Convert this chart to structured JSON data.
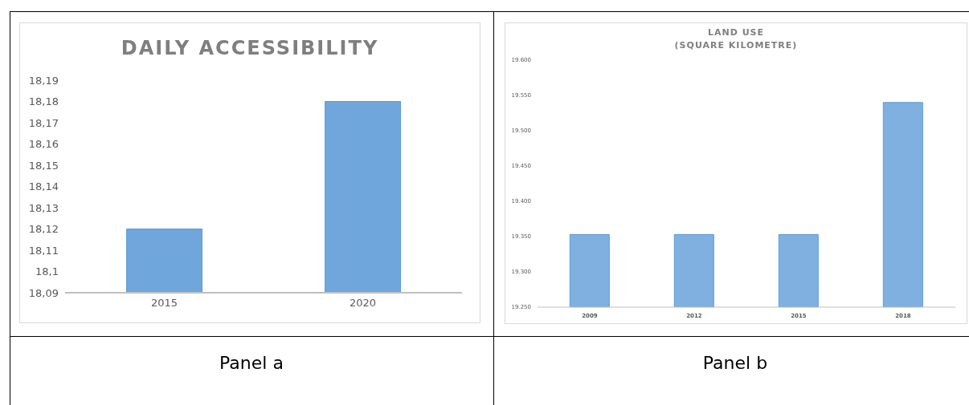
{
  "chart_data": [
    {
      "type": "bar",
      "title": "DAILY ACCESSIBILITY",
      "categories": [
        "2015",
        "2020"
      ],
      "values": [
        18.12,
        18.18
      ],
      "color": "#6fa6dc",
      "ylim": [
        18.09,
        18.19
      ],
      "yticks": [
        {
          "value": 18.09,
          "label": "18,09"
        },
        {
          "value": 18.1,
          "label": "18,1"
        },
        {
          "value": 18.11,
          "label": "18,11"
        },
        {
          "value": 18.12,
          "label": "18,12"
        },
        {
          "value": 18.13,
          "label": "18,13"
        },
        {
          "value": 18.14,
          "label": "18,14"
        },
        {
          "value": 18.15,
          "label": "18,15"
        },
        {
          "value": 18.16,
          "label": "18,16"
        },
        {
          "value": 18.17,
          "label": "18,17"
        },
        {
          "value": 18.18,
          "label": "18,18"
        },
        {
          "value": 18.19,
          "label": "18,19"
        }
      ],
      "annotations": [
        "Panel a"
      ]
    },
    {
      "type": "bar",
      "title": "LAND USE\n(SQUARE KILOMETRE)",
      "categories": [
        "2009",
        "2012",
        "2015",
        "2018"
      ],
      "values": [
        19353,
        19353,
        19353,
        19540
      ],
      "color": "#7fb0e0",
      "ylim": [
        19250,
        19600
      ],
      "yticks": [
        {
          "value": 19250,
          "label": "19.250"
        },
        {
          "value": 19300,
          "label": "19.300"
        },
        {
          "value": 19350,
          "label": "19.350"
        },
        {
          "value": 19400,
          "label": "19.400"
        },
        {
          "value": 19450,
          "label": "19.450"
        },
        {
          "value": 19500,
          "label": "19.500"
        },
        {
          "value": 19550,
          "label": "19.550"
        },
        {
          "value": 19600,
          "label": "19.600"
        }
      ],
      "annotations": [
        "Panel b"
      ]
    }
  ]
}
